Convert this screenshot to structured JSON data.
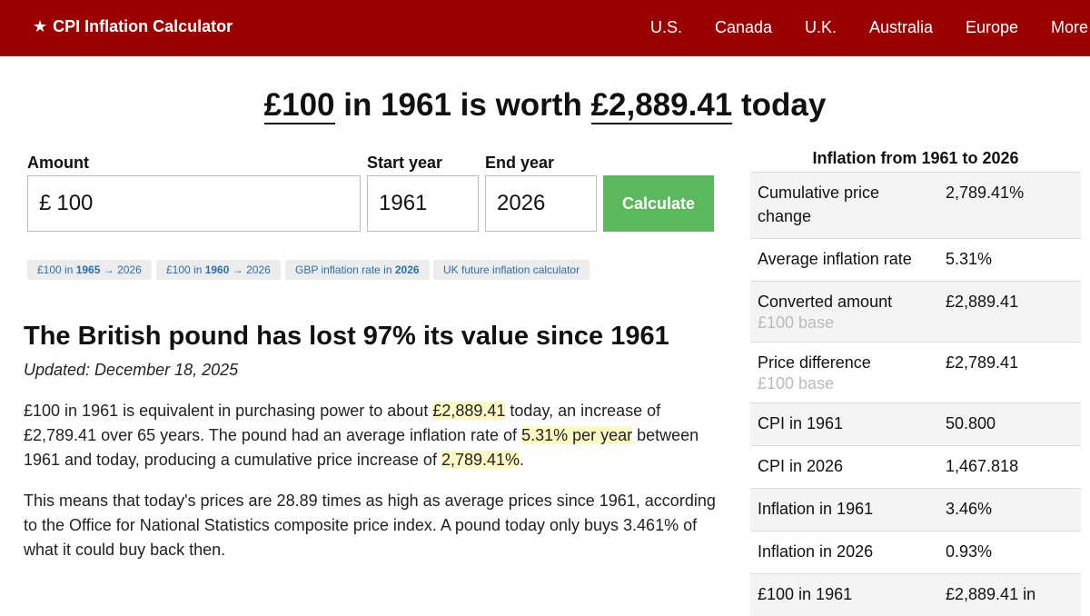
{
  "header": {
    "brand": "CPI Inflation Calculator",
    "brand_icon": "star-icon",
    "nav": [
      "U.S.",
      "Canada",
      "U.K.",
      "Australia",
      "Europe",
      "More"
    ]
  },
  "headline": {
    "amount": "£100",
    "mid": " in 1961 is worth ",
    "value": "£2,889.41",
    "end": " today"
  },
  "form": {
    "amount_label": "Amount",
    "amount_prefix": "£",
    "amount_value": "100",
    "start_label": "Start year",
    "start_value": "1961",
    "end_label": "End year",
    "end_value": "2026",
    "calculate": "Calculate"
  },
  "chips": [
    {
      "pre": "£100 in ",
      "bold": "1965",
      "post": " → 2026"
    },
    {
      "pre": "£100 in ",
      "bold": "1960",
      "post": " → 2026"
    },
    {
      "pre": "GBP inflation rate in ",
      "bold": "2026",
      "post": ""
    },
    {
      "pre": "UK future inflation calculator",
      "bold": "",
      "post": ""
    }
  ],
  "article": {
    "title": "The British pound has lost 97% its value since 1961",
    "updated": "Updated: December 18, 2025",
    "p1": {
      "a": "£100 in 1961 is equivalent in purchasing power to about ",
      "h1": "£2,889.41",
      "b": " today, an increase of £2,789.41 over 65 years. The pound had an average inflation rate of ",
      "h2": "5.31% per year",
      "c": " between 1961 and today, producing a cumulative price increase of ",
      "h3": "2,789.41%",
      "d": "."
    },
    "p2": "This means that today's prices are 28.89 times as high as average prices since 1961, according to the Office for National Statistics composite price index. A pound today only buys 3.461% of what it could buy back then."
  },
  "sidebar": {
    "title": "Inflation from 1961 to 2026",
    "rows": [
      {
        "label": "Cumulative price change",
        "sub": "",
        "value": "2,789.41%"
      },
      {
        "label": "Average inflation rate",
        "sub": "",
        "value": "5.31%"
      },
      {
        "label": "Converted amount",
        "sub": "£100 base",
        "value": "£2,889.41"
      },
      {
        "label": "Price difference",
        "sub": "£100 base",
        "value": "£2,789.41"
      },
      {
        "label": "CPI in 1961",
        "sub": "",
        "value": "50.800"
      },
      {
        "label": "CPI in 2026",
        "sub": "",
        "value": "1,467.818"
      },
      {
        "label": "Inflation in 1961",
        "sub": "",
        "value": "3.46%"
      },
      {
        "label": "Inflation in 2026",
        "sub": "",
        "value": "0.93%"
      },
      {
        "label": "£100 in 1961",
        "sub": "",
        "value": "£2,889.41 in"
      }
    ]
  },
  "colors": {
    "header_bg": "#9a0000",
    "button_bg": "#5cb85c",
    "highlight": "#fdf8c4",
    "chip_text": "#2a6fb0"
  }
}
